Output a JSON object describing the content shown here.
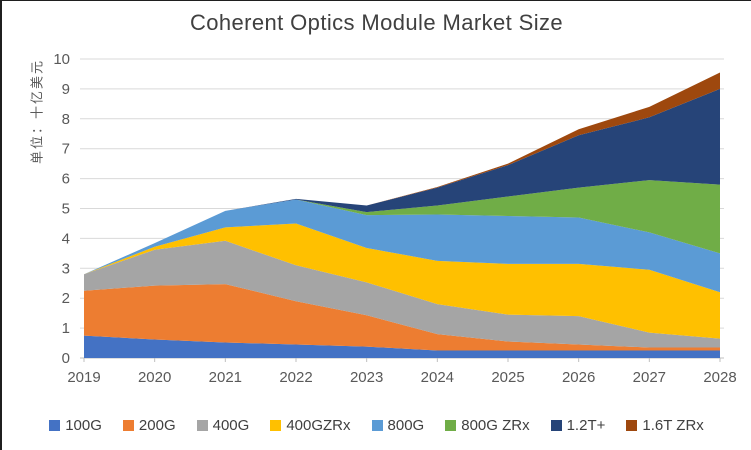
{
  "title": "Coherent Optics Module Market Size",
  "y_axis_title": "单位：十亿美元",
  "chart_data": {
    "type": "area",
    "stacked": true,
    "title": "Coherent Optics Module Market Size",
    "ylabel": "单位：十亿美元",
    "xlabel": "",
    "ylim": [
      0,
      10
    ],
    "yticks": [
      0,
      1,
      2,
      3,
      4,
      5,
      6,
      7,
      8,
      9,
      10
    ],
    "grid": true,
    "legend_position": "bottom",
    "grid_color": "#D9D9D9",
    "axis_color": "#BFBFBF",
    "tick_text_color": "#595959",
    "categories": [
      "2019",
      "2020",
      "2021",
      "2022",
      "2023",
      "2024",
      "2025",
      "2026",
      "2027",
      "2028"
    ],
    "series": [
      {
        "name": "100G",
        "color": "#4472C4",
        "values": [
          0.75,
          0.62,
          0.52,
          0.45,
          0.38,
          0.25,
          0.25,
          0.25,
          0.25,
          0.25
        ]
      },
      {
        "name": "200G",
        "color": "#ED7D31",
        "values": [
          1.5,
          1.8,
          1.95,
          1.45,
          1.05,
          0.55,
          0.3,
          0.2,
          0.1,
          0.1
        ]
      },
      {
        "name": "400G",
        "color": "#A5A5A5",
        "values": [
          0.55,
          1.2,
          1.45,
          1.2,
          1.1,
          1.0,
          0.9,
          0.95,
          0.5,
          0.3
        ]
      },
      {
        "name": "400GZRx",
        "color": "#FFC000",
        "values": [
          0.0,
          0.1,
          0.45,
          1.4,
          1.15,
          1.45,
          1.7,
          1.75,
          2.1,
          1.55
        ]
      },
      {
        "name": "800G",
        "color": "#5B9BD5",
        "values": [
          0.0,
          0.12,
          0.55,
          0.8,
          1.1,
          1.55,
          1.6,
          1.55,
          1.25,
          1.3
        ]
      },
      {
        "name": "800G ZRx",
        "color": "#70AD47",
        "values": [
          0.0,
          0.0,
          0.0,
          0.0,
          0.1,
          0.3,
          0.65,
          1.0,
          1.75,
          2.3
        ]
      },
      {
        "name": "1.2T+",
        "color": "#264478",
        "values": [
          0.0,
          0.0,
          0.0,
          0.02,
          0.22,
          0.6,
          1.05,
          1.75,
          2.1,
          3.2
        ]
      },
      {
        "name": "1.6T ZRx",
        "color": "#9E480E",
        "values": [
          0.0,
          0.0,
          0.0,
          0.0,
          0.0,
          0.02,
          0.05,
          0.2,
          0.35,
          0.55
        ]
      }
    ]
  }
}
